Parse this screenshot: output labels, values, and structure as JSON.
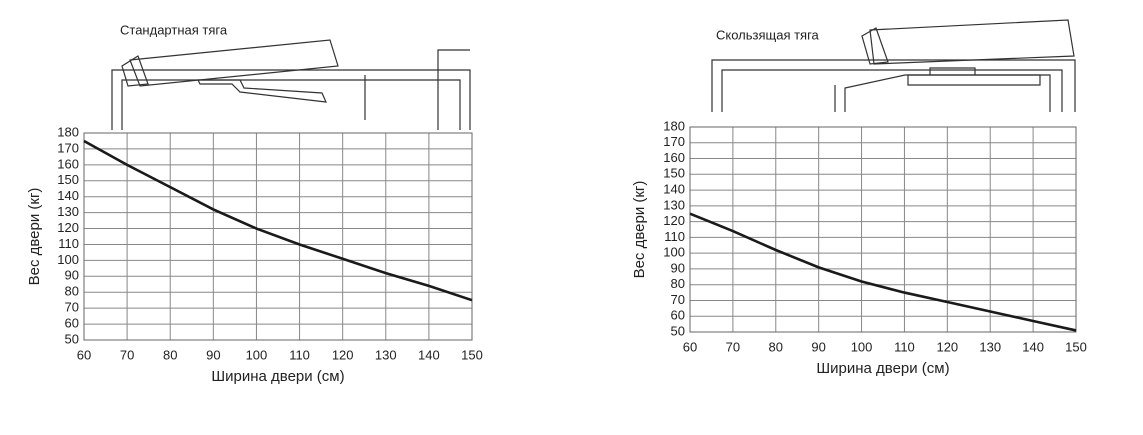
{
  "chart_data": [
    {
      "type": "line",
      "title": "Стандартная тяга",
      "x_label": "Ширина двери (см)",
      "y_label": "Вес двери (кг)",
      "x": [
        60,
        70,
        80,
        90,
        100,
        110,
        120,
        130,
        140,
        150
      ],
      "values": [
        175,
        160,
        146,
        132,
        120,
        110,
        101,
        92,
        84,
        75
      ],
      "color": "#1a1a1a",
      "xlim": [
        60,
        150
      ],
      "ylim": [
        50,
        180
      ],
      "xticks": [
        60,
        70,
        80,
        90,
        100,
        110,
        120,
        130,
        140,
        150
      ],
      "yticks": [
        50,
        60,
        70,
        80,
        90,
        100,
        110,
        120,
        130,
        140,
        150,
        160,
        170,
        180
      ],
      "grid": true
    },
    {
      "type": "line",
      "title": "Скользящая тяга",
      "x_label": "Ширина двери (см)",
      "y_label": "Вес двери (кг)",
      "x": [
        60,
        70,
        80,
        90,
        100,
        110,
        120,
        130,
        140,
        150
      ],
      "values": [
        125,
        114,
        102,
        91,
        82,
        75,
        69,
        63,
        57,
        51
      ],
      "color": "#1a1a1a",
      "xlim": [
        60,
        150
      ],
      "ylim": [
        50,
        180
      ],
      "xticks": [
        60,
        70,
        80,
        90,
        100,
        110,
        120,
        130,
        140,
        150
      ],
      "yticks": [
        50,
        60,
        70,
        80,
        90,
        100,
        110,
        120,
        130,
        140,
        150,
        160,
        170,
        180
      ],
      "grid": true
    }
  ]
}
